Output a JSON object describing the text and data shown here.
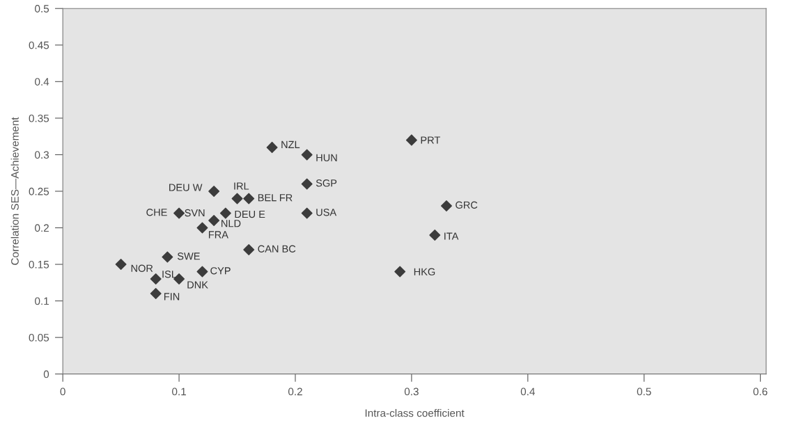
{
  "chart_data": {
    "type": "scatter",
    "xlabel": "Intra-class coefficient",
    "ylabel": "Correlation SES—Achievement",
    "x": [
      0.05,
      0.09,
      0.08,
      0.1,
      0.08,
      0.12,
      0.1,
      0.13,
      0.12,
      0.13,
      0.15,
      0.16,
      0.14,
      0.16,
      0.18,
      0.21,
      0.21,
      0.21,
      0.3,
      0.33,
      0.32,
      0.29
    ],
    "series": [
      {
        "color": "#3c3c3c",
        "values": [
          0.15,
          0.16,
          0.13,
          0.13,
          0.11,
          0.14,
          0.22,
          0.21,
          0.2,
          0.25,
          0.24,
          0.24,
          0.22,
          0.17,
          0.31,
          0.3,
          0.26,
          0.22,
          0.32,
          0.23,
          0.19,
          0.14
        ]
      }
    ],
    "annotations": [
      {
        "text": "NOR",
        "x": 0.05,
        "y": 0.15
      },
      {
        "text": "SWE",
        "x": 0.09,
        "y": 0.16
      },
      {
        "text": "ISL",
        "x": 0.08,
        "y": 0.13
      },
      {
        "text": "DNK",
        "x": 0.1,
        "y": 0.13
      },
      {
        "text": "FIN",
        "x": 0.08,
        "y": 0.11
      },
      {
        "text": "CYP",
        "x": 0.12,
        "y": 0.14
      },
      {
        "text": "CHE",
        "x": 0.1,
        "y": 0.22
      },
      {
        "text": "SVN",
        "x": 0.13,
        "y": 0.21
      },
      {
        "text": "NLD",
        "x": 0.13,
        "y": 0.21
      },
      {
        "text": "FRA",
        "x": 0.12,
        "y": 0.2
      },
      {
        "text": "DEU W",
        "x": 0.13,
        "y": 0.25
      },
      {
        "text": "IRL",
        "x": 0.15,
        "y": 0.24
      },
      {
        "text": "BEL FR",
        "x": 0.16,
        "y": 0.24
      },
      {
        "text": "DEU E",
        "x": 0.14,
        "y": 0.22
      },
      {
        "text": "CAN BC",
        "x": 0.16,
        "y": 0.17
      },
      {
        "text": "NZL",
        "x": 0.18,
        "y": 0.31
      },
      {
        "text": "HUN",
        "x": 0.21,
        "y": 0.3
      },
      {
        "text": "SGP",
        "x": 0.21,
        "y": 0.26
      },
      {
        "text": "USA",
        "x": 0.21,
        "y": 0.22
      },
      {
        "text": "PRT",
        "x": 0.3,
        "y": 0.32
      },
      {
        "text": "GRC",
        "x": 0.33,
        "y": 0.23
      },
      {
        "text": "ITA",
        "x": 0.32,
        "y": 0.19
      },
      {
        "text": "HKG",
        "x": 0.29,
        "y": 0.14
      }
    ],
    "xlim": [
      0,
      0.605
    ],
    "ylim": [
      0,
      0.5
    ],
    "xticks": [
      0,
      0.1,
      0.2,
      0.3,
      0.4,
      0.5,
      0.6
    ],
    "yticks": [
      0,
      0.05,
      0.1,
      0.15,
      0.2,
      0.25,
      0.3,
      0.35,
      0.4,
      0.45,
      0.5
    ],
    "marker": "diamond",
    "grid": false
  }
}
